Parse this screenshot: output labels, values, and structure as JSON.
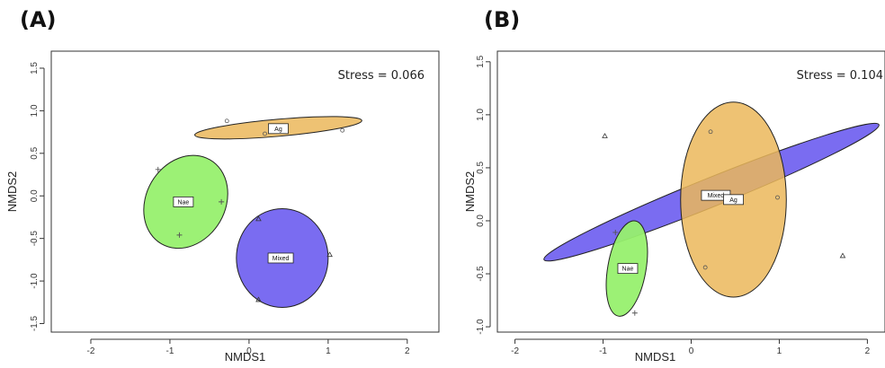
{
  "chart_data": [
    {
      "type": "scatter",
      "panel_label": "(A)",
      "xlabel": "NMDS1",
      "ylabel": "NMDS2",
      "xlim": [
        -2.5,
        2.4
      ],
      "ylim": [
        -1.6,
        1.7
      ],
      "xticks": [
        -2,
        -1,
        0,
        1,
        2
      ],
      "yticks": [
        -1.5,
        -1.0,
        -0.5,
        0.0,
        0.5,
        1.0,
        1.5
      ],
      "xtick_labels": [
        "-2",
        "-1",
        "0",
        "1",
        "2"
      ],
      "ytick_labels": [
        "-1.5",
        "-1.0",
        "-0.5",
        "0.0",
        "0.5",
        "1.0",
        "1.5"
      ],
      "annotation": "Stress = 0.066",
      "groups": [
        {
          "name": "Ag",
          "color": "#ebb75a",
          "marker": "circle",
          "points": [
            {
              "x": -0.28,
              "y": 0.88
            },
            {
              "x": 0.2,
              "y": 0.73
            },
            {
              "x": 1.18,
              "y": 0.77
            }
          ],
          "ellipse": {
            "cx": 0.37,
            "cy": 0.8,
            "rx": 1.06,
            "ry": 0.1,
            "angle_deg": -5
          },
          "label_pos": {
            "x": 0.37,
            "y": 0.79
          }
        },
        {
          "name": "Nae",
          "color": "#97f06e",
          "marker": "plus",
          "points": [
            {
              "x": -1.15,
              "y": 0.31
            },
            {
              "x": -0.35,
              "y": -0.07
            },
            {
              "x": -0.88,
              "y": -0.46
            }
          ],
          "ellipse": {
            "cx": -0.8,
            "cy": -0.07,
            "rx": 0.5,
            "ry": 0.57,
            "angle_deg": 30
          },
          "label_pos": {
            "x": -0.83,
            "y": -0.07
          }
        },
        {
          "name": "Mixed",
          "color": "#6b5cf0",
          "marker": "triangle",
          "points": [
            {
              "x": 0.12,
              "y": -0.27
            },
            {
              "x": 1.02,
              "y": -0.69
            },
            {
              "x": 0.12,
              "y": -1.22
            }
          ],
          "ellipse": {
            "cx": 0.42,
            "cy": -0.73,
            "rx": 0.58,
            "ry": 0.58,
            "angle_deg": 0
          },
          "label_pos": {
            "x": 0.4,
            "y": -0.73
          }
        }
      ]
    },
    {
      "type": "scatter",
      "panel_label": "(B)",
      "xlabel": "NMDS1",
      "ylabel": "NMDS2",
      "xlim": [
        -2.2,
        2.2
      ],
      "ylim": [
        -1.05,
        1.6
      ],
      "xticks": [
        -2,
        -1,
        0,
        1,
        2
      ],
      "yticks": [
        -1.0,
        -0.5,
        0.0,
        0.5,
        1.0,
        1.5
      ],
      "xtick_labels": [
        "-2",
        "-1",
        "0",
        "1",
        "2"
      ],
      "ytick_labels": [
        "-1.0",
        "-0.5",
        "0.0",
        "0.5",
        "1.0",
        "1.5"
      ],
      "annotation": "Stress = 0.104",
      "groups": [
        {
          "name": "Mixed",
          "color": "#6b5cf0",
          "marker": "triangle",
          "points": [
            {
              "x": -0.98,
              "y": 0.8
            },
            {
              "x": 1.72,
              "y": -0.33
            }
          ],
          "ellipse": {
            "cx": 0.23,
            "cy": 0.27,
            "rx": 2.05,
            "ry": 0.135,
            "angle_deg": -22
          },
          "label_pos": {
            "x": 0.28,
            "y": 0.24
          }
        },
        {
          "name": "Ag",
          "color": "#ebb75a",
          "marker": "circle",
          "points": [
            {
              "x": 0.22,
              "y": 0.84
            },
            {
              "x": 0.98,
              "y": 0.22
            },
            {
              "x": 0.16,
              "y": -0.44
            }
          ],
          "ellipse": {
            "cx": 0.48,
            "cy": 0.2,
            "rx": 0.6,
            "ry": 0.92,
            "angle_deg": 0
          },
          "label_pos": {
            "x": 0.48,
            "y": 0.2
          }
        },
        {
          "name": "Nae",
          "color": "#97f06e",
          "marker": "plus",
          "points": [
            {
              "x": -0.86,
              "y": -0.11
            },
            {
              "x": -0.64,
              "y": -0.87
            }
          ],
          "ellipse": {
            "cx": -0.73,
            "cy": -0.45,
            "rx": 0.55,
            "ry": 0.18,
            "angle_deg": -80
          },
          "label_pos": {
            "x": -0.72,
            "y": -0.45
          }
        }
      ]
    }
  ]
}
